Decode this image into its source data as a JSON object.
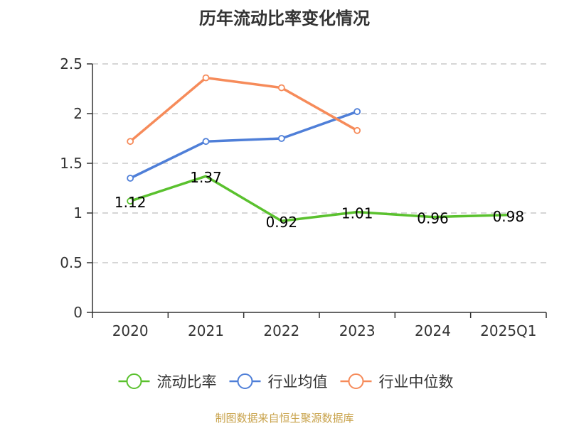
{
  "chart_data": {
    "type": "line",
    "title": "历年流动比率变化情况",
    "categories": [
      "2020",
      "2021",
      "2022",
      "2023",
      "2024",
      "2025Q1"
    ],
    "ylim": [
      0,
      2.5
    ],
    "yticks": [
      "0",
      "0.5",
      "1",
      "1.5",
      "2",
      "2.5"
    ],
    "grid": true,
    "legend_position": "bottom",
    "series": [
      {
        "name": "流动比率",
        "color": "#5ac12e",
        "values": [
          1.12,
          1.37,
          0.92,
          1.01,
          0.96,
          0.98
        ],
        "labels": [
          "1.12",
          "1.37",
          "0.92",
          "1.01",
          "0.96",
          "0.98"
        ],
        "markers": [
          true,
          false,
          false,
          false,
          false,
          false
        ]
      },
      {
        "name": "行业均值",
        "color": "#4f7fd8",
        "values": [
          1.35,
          1.72,
          1.75,
          2.02,
          null,
          null
        ]
      },
      {
        "name": "行业中位数",
        "color": "#f68b5a",
        "values": [
          1.72,
          2.36,
          2.26,
          1.83,
          null,
          null
        ]
      }
    ]
  },
  "source_note": "制图数据来自恒生聚源数据库"
}
